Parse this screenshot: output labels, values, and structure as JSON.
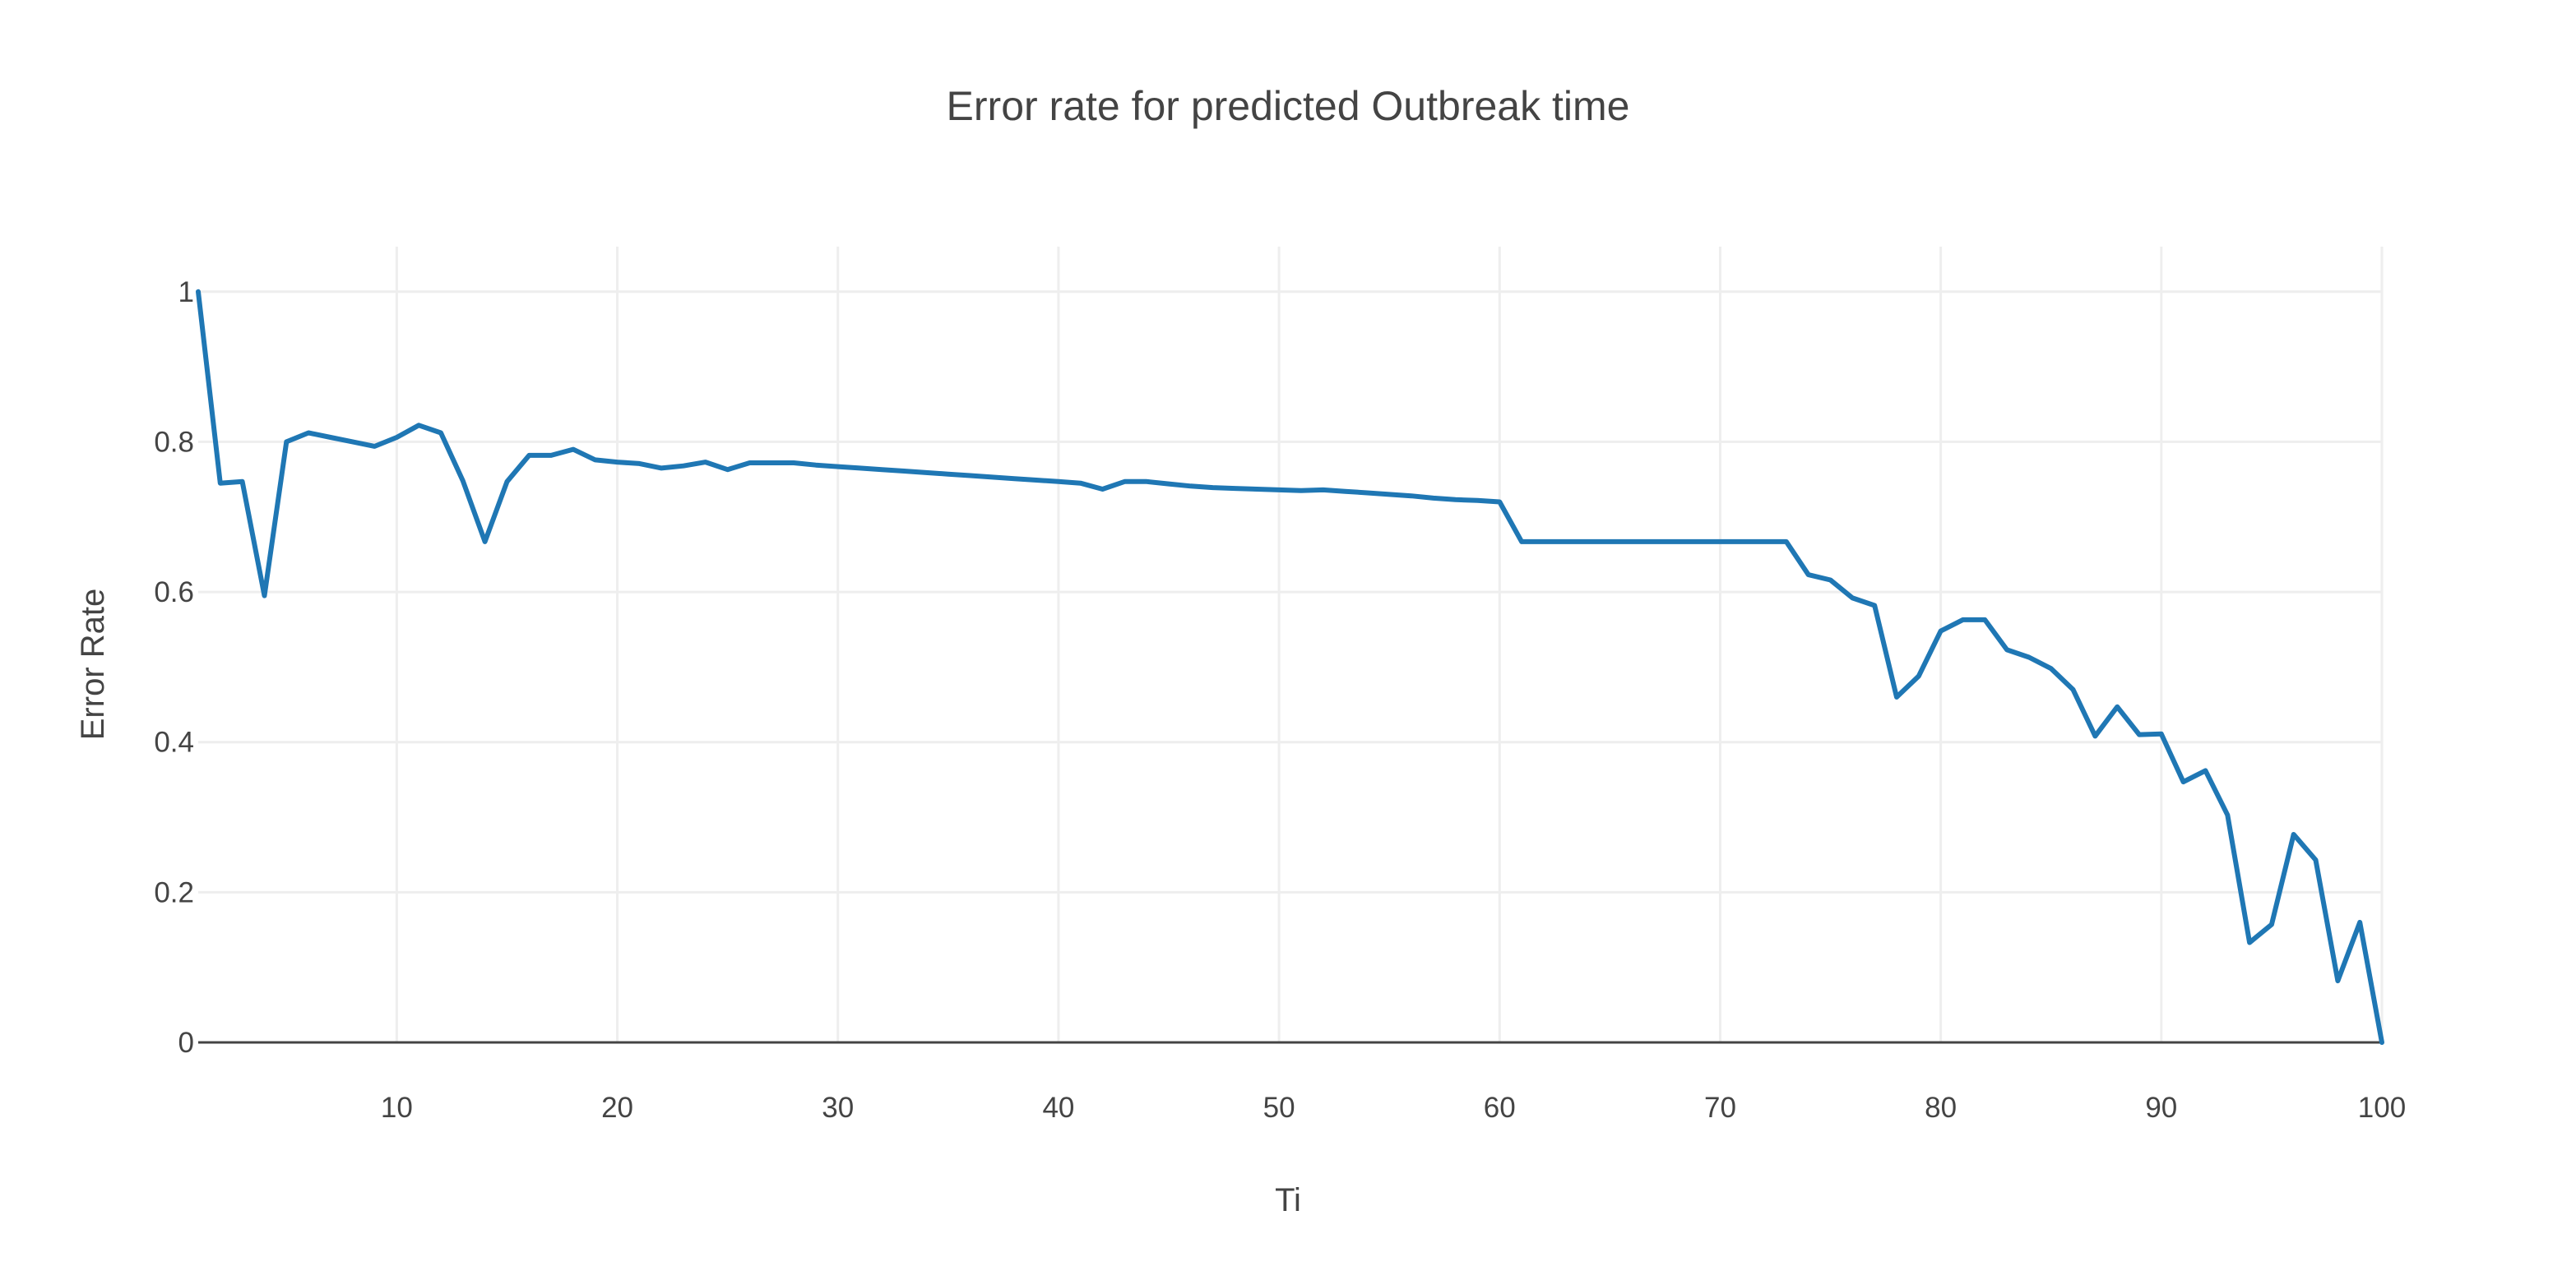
{
  "chart_data": {
    "type": "line",
    "title": "Error rate for predicted Outbreak time",
    "xlabel": "Ti",
    "ylabel": "Error Rate",
    "xlim": [
      1,
      100
    ],
    "ylim": [
      0,
      1.0
    ],
    "x_ticks": [
      10,
      20,
      30,
      40,
      50,
      60,
      70,
      80,
      90,
      100
    ],
    "y_ticks": [
      0,
      0.2,
      0.4,
      0.6,
      0.8,
      1
    ],
    "y_tick_labels": [
      "0",
      "0.2",
      "0.4",
      "0.6",
      "0.8",
      "1"
    ],
    "grid": true,
    "legend": "none",
    "series_color": "#1f77b4",
    "series": [
      {
        "x": [
          1,
          2,
          3,
          4,
          5,
          6,
          7,
          8,
          9,
          10,
          11,
          12,
          13,
          14,
          15,
          16,
          17,
          18,
          19,
          20,
          21,
          22,
          23,
          24,
          25,
          26,
          27,
          28,
          29,
          30,
          31,
          32,
          33,
          34,
          35,
          36,
          37,
          38,
          39,
          40,
          41,
          42,
          43,
          44,
          45,
          46,
          47,
          48,
          49,
          50,
          51,
          52,
          53,
          54,
          55,
          56,
          57,
          58,
          59,
          60,
          61,
          62,
          63,
          64,
          65,
          66,
          67,
          68,
          69,
          70,
          71,
          72,
          73,
          74,
          75,
          76,
          77,
          78,
          79,
          80,
          81,
          82,
          83,
          84,
          85,
          86,
          87,
          88,
          89,
          90,
          91,
          92,
          93,
          94,
          95,
          96,
          97,
          98,
          99,
          100
        ],
        "values": [
          1.0,
          0.745,
          0.747,
          0.595,
          0.8,
          0.812,
          0.806,
          0.8,
          0.794,
          0.806,
          0.822,
          0.812,
          0.748,
          0.667,
          0.747,
          0.782,
          0.782,
          0.79,
          0.776,
          0.773,
          0.771,
          0.765,
          0.768,
          0.773,
          0.763,
          0.772,
          0.772,
          0.772,
          0.769,
          0.767,
          0.765,
          0.763,
          0.761,
          0.759,
          0.757,
          0.755,
          0.753,
          0.751,
          0.749,
          0.747,
          0.745,
          0.737,
          0.747,
          0.747,
          0.744,
          0.741,
          0.739,
          0.738,
          0.737,
          0.736,
          0.735,
          0.736,
          0.734,
          0.732,
          0.73,
          0.728,
          0.725,
          0.723,
          0.722,
          0.72,
          0.667,
          0.667,
          0.667,
          0.667,
          0.667,
          0.667,
          0.667,
          0.667,
          0.667,
          0.667,
          0.667,
          0.667,
          0.667,
          0.623,
          0.616,
          0.592,
          0.582,
          0.46,
          0.488,
          0.548,
          0.563,
          0.563,
          0.523,
          0.513,
          0.498,
          0.47,
          0.408,
          0.447,
          0.41,
          0.411,
          0.347,
          0.362,
          0.303,
          0.133,
          0.157,
          0.277,
          0.243,
          0.082,
          0.16,
          0.0
        ]
      }
    ]
  }
}
